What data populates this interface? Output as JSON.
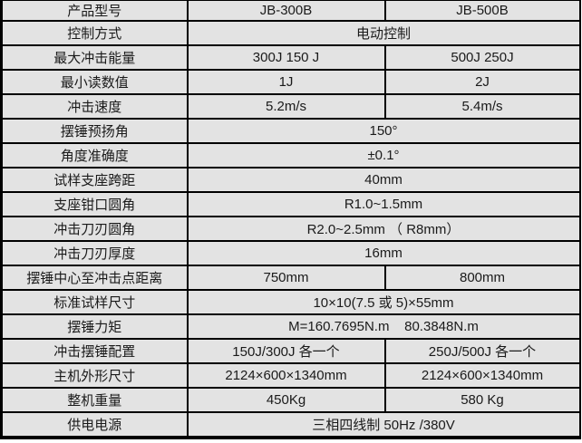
{
  "table": {
    "description_colors": {
      "cell_background": "#e3e3e3",
      "border": "#000000",
      "text": "#1a1a1a",
      "page_background": "#ffffff"
    },
    "rows": [
      {
        "label": "产品型号",
        "cells": [
          "JB-300B",
          "JB-500B"
        ]
      },
      {
        "label": "控制方式",
        "span": "电动控制"
      },
      {
        "label": "最大冲击能量",
        "cells": [
          "300J 150 J",
          "500J 250J"
        ]
      },
      {
        "label": "最小读数值",
        "cells": [
          "1J",
          "2J"
        ]
      },
      {
        "label": "冲击速度",
        "cells": [
          "5.2m/s",
          "5.4m/s"
        ]
      },
      {
        "label": "摆锤预扬角",
        "span": "150°"
      },
      {
        "label": "角度准确度",
        "span": "±0.1°"
      },
      {
        "label": "试样支座跨距",
        "span": "40mm"
      },
      {
        "label": "支座钳口圆角",
        "span": "R1.0~1.5mm"
      },
      {
        "label": "冲击刀刃圆角",
        "span": "R2.0~2.5mm （ R8mm）"
      },
      {
        "label": "冲击刀刃厚度",
        "span": "16mm"
      },
      {
        "label": "摆锤中心至冲击点距离",
        "cells": [
          "750mm",
          "800mm"
        ]
      },
      {
        "label": "标准试样尺寸",
        "span": "10×10(7.5 或 5)×55mm"
      },
      {
        "label": "摆锤力矩",
        "span": "M=160.7695N.m    80.3848N.m"
      },
      {
        "label": "冲击摆锤配置",
        "cells": [
          "150J/300J 各一个",
          "250J/500J 各一个"
        ]
      },
      {
        "label": "主机外形尺寸",
        "cells": [
          "2124×600×1340mm",
          "2124×600×1340mm"
        ]
      },
      {
        "label": "整机重量",
        "cells": [
          "450Kg",
          "580 Kg"
        ]
      },
      {
        "label": "供电电源",
        "span": "三相四线制 50Hz /380V"
      }
    ]
  }
}
